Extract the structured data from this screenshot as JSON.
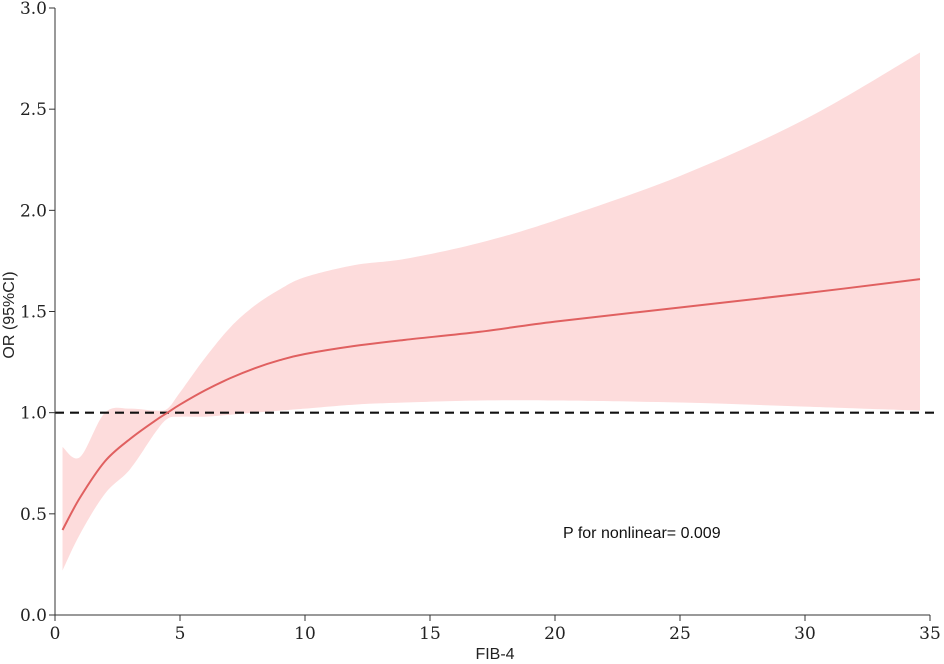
{
  "chart_data": {
    "type": "line",
    "xlabel": "FIB-4",
    "ylabel": "OR (95%CI)",
    "xlim": [
      0,
      35
    ],
    "ylim": [
      0,
      3
    ],
    "xticks": [
      0,
      5,
      10,
      15,
      20,
      25,
      30,
      35
    ],
    "yticks": [
      0.0,
      0.5,
      1.0,
      1.5,
      2.0,
      2.5,
      3.0
    ],
    "ytick_labels": [
      "0.0",
      "0.5",
      "1.0",
      "1.5",
      "2.0",
      "2.5",
      "3.0"
    ],
    "grid": false,
    "reference_line": {
      "y": 1.0,
      "style": "dashed",
      "color": "#111111"
    },
    "annotation": "P for nonlinear= 0.009",
    "series": [
      {
        "x": [
          0.3,
          1.0,
          2.0,
          3.0,
          4.0,
          4.5,
          5.0,
          6.0,
          7.0,
          8.0,
          9.0,
          10.0,
          12.0,
          14.0,
          17.0,
          20.0,
          25.0,
          30.0,
          34.6
        ],
        "y": [
          0.42,
          0.58,
          0.76,
          0.87,
          0.96,
          1.0,
          1.04,
          1.11,
          1.17,
          1.22,
          1.26,
          1.29,
          1.33,
          1.36,
          1.4,
          1.45,
          1.52,
          1.59,
          1.66
        ],
        "lower": [
          0.22,
          0.4,
          0.6,
          0.72,
          0.9,
          0.97,
          0.98,
          0.98,
          0.99,
          1.0,
          1.01,
          1.02,
          1.04,
          1.05,
          1.06,
          1.06,
          1.05,
          1.03,
          1.01
        ],
        "upper": [
          0.83,
          0.78,
          1.0,
          1.02,
          1.01,
          1.02,
          1.1,
          1.27,
          1.42,
          1.53,
          1.61,
          1.67,
          1.73,
          1.76,
          1.84,
          1.95,
          2.17,
          2.45,
          2.78
        ],
        "line_color": "#E06060",
        "band_color": "#FDDCDC"
      }
    ]
  }
}
